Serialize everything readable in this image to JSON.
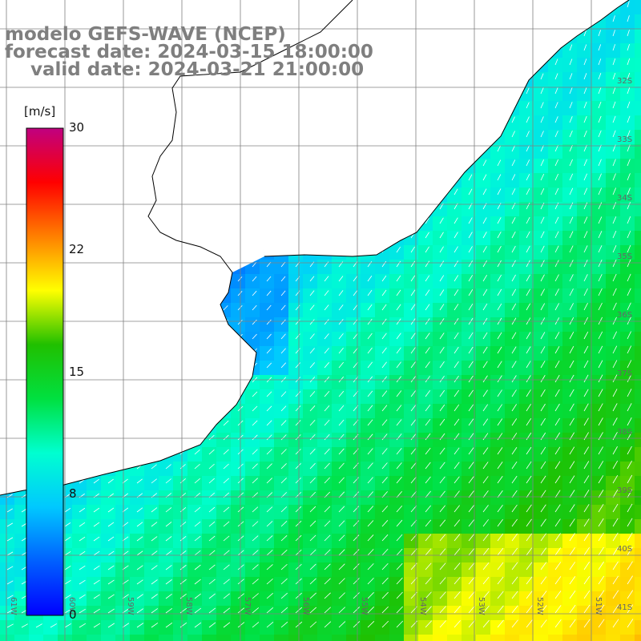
{
  "titles": {
    "line1": "modelo GEFS-WAVE (NCEP)",
    "line2": "forecast date: 2024-03-15 18:00:00",
    "line3": "    valid date: 2024-03-21 21:00:00"
  },
  "colorbar": {
    "unit": "[m/s]",
    "ticks": [
      "30",
      "22",
      "15",
      "8",
      "0"
    ],
    "colors": [
      "#0000ff",
      "#0060ff",
      "#00c8ff",
      "#00ffd0",
      "#00e040",
      "#20c000",
      "#ffff00",
      "#ff8000",
      "#ff0000",
      "#c00080"
    ]
  },
  "grid": {
    "lon_labels": [
      "61W",
      "60W",
      "59W",
      "58W",
      "57W",
      "56W",
      "55W",
      "54W",
      "53W",
      "52W",
      "51W"
    ],
    "lat_labels": [
      "32S",
      "33S",
      "34S",
      "35S",
      "36S",
      "37S",
      "38S",
      "39S",
      "40S",
      "41S"
    ]
  },
  "legend_colors": {
    "land": "#ffffff",
    "coast": "#000000",
    "grid": "#808080",
    "arrow": "#ffffff"
  }
}
